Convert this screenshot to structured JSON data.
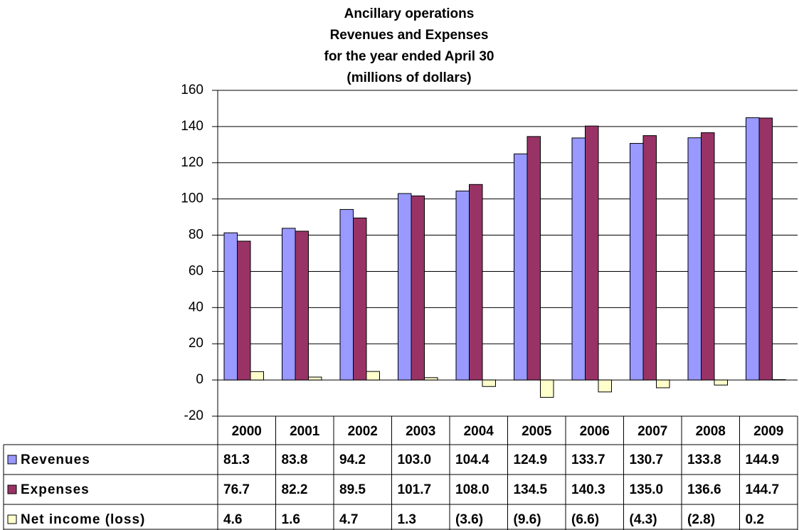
{
  "chart_data": {
    "type": "bar",
    "title": [
      "Ancillary operations",
      "Revenues and Expenses",
      "for the year ended April 30",
      "(millions of dollars)"
    ],
    "categories": [
      "2000",
      "2001",
      "2002",
      "2003",
      "2004",
      "2005",
      "2006",
      "2007",
      "2008",
      "2009"
    ],
    "series": [
      {
        "name": "Revenues",
        "color": "#9999ff",
        "values": [
          81.3,
          83.8,
          94.2,
          103.0,
          104.4,
          124.9,
          133.7,
          130.7,
          133.8,
          144.9
        ],
        "value_labels": [
          "81.3",
          "83.8",
          "94.2",
          "103.0",
          "104.4",
          "124.9",
          "133.7",
          "130.7",
          "133.8",
          "144.9"
        ]
      },
      {
        "name": "Expenses",
        "color": "#993366",
        "values": [
          76.7,
          82.2,
          89.5,
          101.7,
          108.0,
          134.5,
          140.3,
          135.0,
          136.6,
          144.7
        ],
        "value_labels": [
          "76.7",
          "82.2",
          "89.5",
          "101.7",
          "108.0",
          "134.5",
          "140.3",
          "135.0",
          "136.6",
          "144.7"
        ]
      },
      {
        "name": "Net income (loss)",
        "color": "#ffffcc",
        "values": [
          4.6,
          1.6,
          4.7,
          1.3,
          -3.6,
          -9.6,
          -6.6,
          -4.3,
          -2.8,
          0.2
        ],
        "value_labels": [
          "4.6",
          "1.6",
          "4.7",
          "1.3",
          "(3.6)",
          "(9.6)",
          "(6.6)",
          "(4.3)",
          "(2.8)",
          "0.2"
        ]
      }
    ],
    "ylim": [
      -20,
      160
    ],
    "yticks": [
      -20,
      0,
      20,
      40,
      60,
      80,
      100,
      120,
      140,
      160
    ],
    "grid": true
  }
}
